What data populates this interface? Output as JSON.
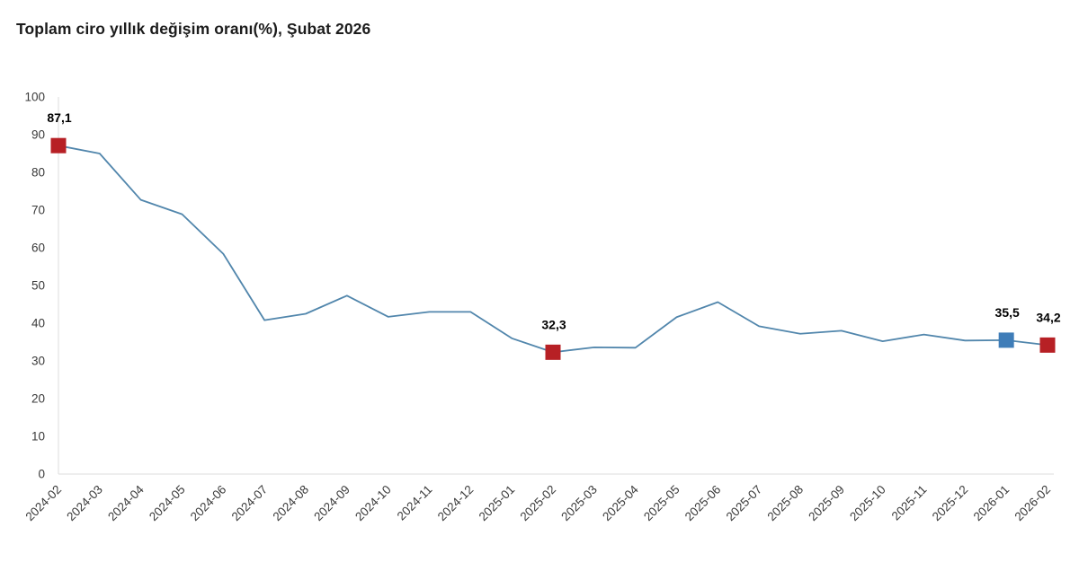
{
  "chart_data": {
    "type": "line",
    "title": "Toplam ciro yıllık değişim oranı(%), Şubat 2026",
    "xlabel": "",
    "ylabel": "",
    "ylim": [
      0,
      100
    ],
    "y_ticks": [
      0,
      10,
      20,
      30,
      40,
      50,
      60,
      70,
      80,
      90,
      100
    ],
    "grid": "off",
    "legend_position": "none",
    "decimal_separator": ",",
    "categories": [
      "2024-02",
      "2024-03",
      "2024-04",
      "2024-05",
      "2024-06",
      "2024-07",
      "2024-08",
      "2024-09",
      "2024-10",
      "2024-11",
      "2024-12",
      "2025-01",
      "2025-02",
      "2025-03",
      "2025-04",
      "2025-05",
      "2025-06",
      "2025-07",
      "2025-08",
      "2025-09",
      "2025-10",
      "2025-11",
      "2025-12",
      "2026-01",
      "2026-02"
    ],
    "values": [
      87.1,
      85.0,
      72.7,
      68.9,
      58.4,
      40.8,
      42.5,
      47.3,
      41.7,
      43.0,
      43.0,
      36.0,
      32.3,
      33.6,
      33.5,
      41.6,
      45.6,
      39.2,
      37.2,
      38.0,
      35.2,
      37.0,
      35.4,
      35.5,
      34.2
    ],
    "annotations": [
      {
        "category": "2024-02",
        "value": 87.1,
        "label": "87,1",
        "marker_color": "#b72025"
      },
      {
        "category": "2025-02",
        "value": 32.3,
        "label": "32,3",
        "marker_color": "#b72025"
      },
      {
        "category": "2026-01",
        "value": 35.5,
        "label": "35,5",
        "marker_color": "#3f7db8"
      },
      {
        "category": "2026-02",
        "value": 34.2,
        "label": "34,2",
        "marker_color": "#b72025"
      }
    ],
    "colors": {
      "line": "#5186ac",
      "marker_red": "#b72025",
      "marker_blue": "#3f7db8",
      "axis_line": "#dcdcdc",
      "tick_text": "#3a3a3a",
      "annotation_text": "#000000",
      "background": "#ffffff"
    }
  }
}
